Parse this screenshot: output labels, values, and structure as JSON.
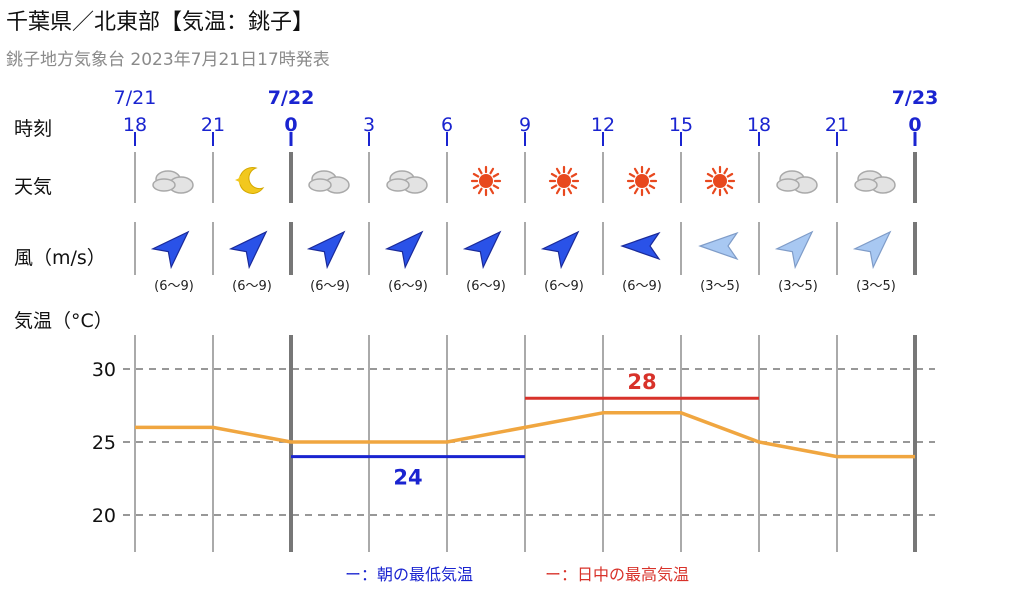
{
  "header": {
    "title": "千葉県／北東部【気温：銚子】",
    "subtitle": "銚子地方気象台 2023年7月21日17時発表"
  },
  "row_labels": {
    "time": "時刻",
    "weather": "天気",
    "wind": "風（m/s）",
    "temp": "気温（°C）"
  },
  "dates": [
    {
      "label": "7/21",
      "col": 0
    },
    {
      "label": "7/22",
      "col": 2
    },
    {
      "label": "7/23",
      "col": 10
    }
  ],
  "hours": [
    "18",
    "21",
    "0",
    "3",
    "6",
    "9",
    "12",
    "15",
    "18",
    "21",
    "0"
  ],
  "weather_icons": [
    "cloud-icon",
    "moon-icon",
    "cloud-icon",
    "cloud-icon",
    "sun-icon",
    "sun-icon",
    "sun-icon",
    "sun-icon",
    "cloud-icon",
    "cloud-icon"
  ],
  "wind": [
    {
      "dir": "SW",
      "speed": "(6〜9)",
      "strength": "strong"
    },
    {
      "dir": "SW",
      "speed": "(6〜9)",
      "strength": "strong"
    },
    {
      "dir": "SW",
      "speed": "(6〜9)",
      "strength": "strong"
    },
    {
      "dir": "SW",
      "speed": "(6〜9)",
      "strength": "strong"
    },
    {
      "dir": "SW",
      "speed": "(6〜9)",
      "strength": "strong"
    },
    {
      "dir": "SW",
      "speed": "(6〜9)",
      "strength": "strong"
    },
    {
      "dir": "E",
      "speed": "(6〜9)",
      "strength": "strong"
    },
    {
      "dir": "E",
      "speed": "(3〜5)",
      "strength": "weak"
    },
    {
      "dir": "SW",
      "speed": "(3〜5)",
      "strength": "weak"
    },
    {
      "dir": "SW",
      "speed": "(3〜5)",
      "strength": "weak"
    }
  ],
  "colors": {
    "line": "#f0a640",
    "low": "#1a24d0",
    "high": "#d8322a",
    "wind_strong": "#2a52e8",
    "wind_weak": "#a8c8f2",
    "sun": "#e8481e",
    "moon": "#f2c81e",
    "cloud": "#c0c0c0"
  },
  "legend": {
    "low": "ー：朝の最低気温",
    "high": "ー：日中の最高気温"
  },
  "chart_data": {
    "type": "line",
    "x": [
      "7/21 18",
      "7/21 21",
      "7/22 0",
      "7/22 3",
      "7/22 6",
      "7/22 9",
      "7/22 12",
      "7/22 15",
      "7/22 18",
      "7/22 21",
      "7/23 0"
    ],
    "values": [
      26,
      26,
      25,
      25,
      25,
      26,
      27,
      27,
      25,
      24,
      24
    ],
    "yticks": [
      20,
      25,
      30
    ],
    "ylim": [
      18,
      32
    ],
    "ylabel": "気温（°C）",
    "grid": true,
    "low": {
      "value": 24,
      "label": "24",
      "from": "7/22 0",
      "to": "7/22 9"
    },
    "high": {
      "value": 28,
      "label": "28",
      "from": "7/22 9",
      "to": "7/22 18"
    }
  }
}
